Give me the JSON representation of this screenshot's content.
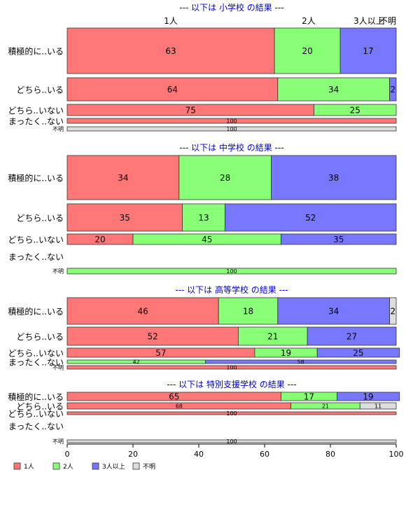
{
  "chart_data": {
    "type": "bar",
    "orientation": "horizontal",
    "stacked": "percent",
    "xlim": [
      0,
      100
    ],
    "x_ticks": [
      0,
      20,
      40,
      60,
      80,
      100
    ],
    "grid": false,
    "legend_position": "bottom-left",
    "series": [
      {
        "name": "1人",
        "color": "#ff7777"
      },
      {
        "name": "2人",
        "color": "#88ff77"
      },
      {
        "name": "3人以上",
        "color": "#7777ff"
      },
      {
        "name": "不明",
        "color": "#dddddd"
      }
    ],
    "top_header_labels": [
      "1人",
      "2人",
      "3人以上",
      "不明"
    ],
    "panels": [
      {
        "title": "--- 以下は 小学校 の結果 ---",
        "rows": [
          {
            "label": "積極的に..いる",
            "values": [
              63,
              20,
              17,
              0
            ],
            "value_labels": [
              "63",
              "20",
              "17",
              ""
            ]
          },
          {
            "label": "どちら..いる",
            "values": [
              64,
              34,
              2,
              0
            ],
            "value_labels": [
              "64",
              "34",
              "2",
              ""
            ]
          },
          {
            "label": "どちら..いない",
            "values": [
              75,
              25,
              0,
              0
            ],
            "value_labels": [
              "75",
              "25",
              "",
              ""
            ]
          },
          {
            "label": "まったく..ない",
            "values": [
              100,
              0,
              0,
              0
            ],
            "value_labels": [
              "100",
              "",
              "",
              ""
            ]
          },
          {
            "label": "不明",
            "values": [
              0,
              0,
              0,
              100
            ],
            "value_labels": [
              "",
              "",
              "",
              "100"
            ]
          }
        ]
      },
      {
        "title": "--- 以下は 中学校 の結果 ---",
        "rows": [
          {
            "label": "積極的に..いる",
            "values": [
              34,
              28,
              38,
              0
            ],
            "value_labels": [
              "34",
              "28",
              "38",
              ""
            ]
          },
          {
            "label": "どちら..いる",
            "values": [
              35,
              13,
              52,
              0
            ],
            "value_labels": [
              "35",
              "13",
              "52",
              ""
            ]
          },
          {
            "label": "どちら..いない",
            "values": [
              20,
              45,
              35,
              0
            ],
            "value_labels": [
              "20",
              "45",
              "35",
              ""
            ]
          },
          {
            "label": "まったく..ない",
            "values": [
              0,
              0,
              0,
              0
            ],
            "value_labels": [
              "",
              "",
              "",
              ""
            ]
          },
          {
            "label": "不明",
            "values": [
              0,
              100,
              0,
              0
            ],
            "value_labels": [
              "",
              "100",
              "",
              ""
            ]
          }
        ]
      },
      {
        "title": "--- 以下は 高等学校 の結果 ---",
        "rows": [
          {
            "label": "積極的に..いる",
            "values": [
              46,
              18,
              34,
              2
            ],
            "value_labels": [
              "46",
              "18",
              "34",
              "2"
            ]
          },
          {
            "label": "どちら..いる",
            "values": [
              52,
              21,
              27,
              0
            ],
            "value_labels": [
              "52",
              "21",
              "27",
              ""
            ]
          },
          {
            "label": "どちら..いない",
            "values": [
              57,
              19,
              25,
              0
            ],
            "value_labels": [
              "57",
              "19",
              "25",
              ""
            ]
          },
          {
            "label": "まったく..ない",
            "values": [
              0,
              42,
              58,
              0
            ],
            "value_labels": [
              "",
              "42",
              "58",
              ""
            ]
          },
          {
            "label": "不明",
            "values": [
              100,
              0,
              0,
              0
            ],
            "value_labels": [
              "100",
              "",
              "",
              ""
            ]
          }
        ]
      },
      {
        "title": "--- 以下は 特別支援学校 の結果 ---",
        "rows": [
          {
            "label": "積極的に..いる",
            "values": [
              65,
              17,
              19,
              0
            ],
            "value_labels": [
              "65",
              "17",
              "19",
              ""
            ]
          },
          {
            "label": "どちら..いる",
            "values": [
              68,
              21,
              0,
              11
            ],
            "value_labels": [
              "68",
              "21",
              "",
              "11"
            ]
          },
          {
            "label": "どちら..いない",
            "values": [
              100,
              0,
              0,
              0
            ],
            "value_labels": [
              "100",
              "",
              "",
              ""
            ]
          },
          {
            "label": "まったく..ない",
            "values": [
              0,
              0,
              0,
              0
            ],
            "value_labels": [
              "",
              "",
              "",
              ""
            ]
          },
          {
            "label": "不明",
            "values": [
              0,
              0,
              0,
              100
            ],
            "value_labels": [
              "",
              "",
              "",
              "100"
            ]
          }
        ]
      }
    ]
  }
}
